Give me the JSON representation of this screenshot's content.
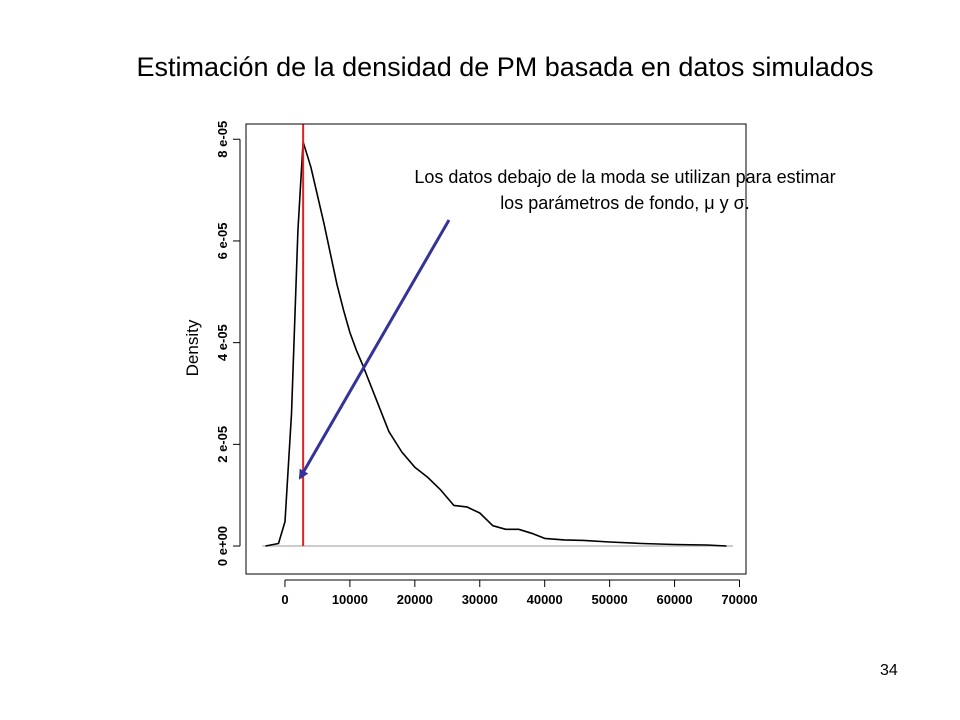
{
  "slide": {
    "title": "Estimación de la densidad de PM basada en datos simulados",
    "page_number": "34"
  },
  "annotation": {
    "line1": "Los datos debajo de la moda se utilizan para estimar",
    "line2": "los parámetros de fondo, μ y σ.",
    "arrow_color": "#333399"
  },
  "colors": {
    "density_line": "#000000",
    "mode_line": "#dd2222",
    "baseline": "#bbbbbb",
    "arrow": "#333399"
  },
  "chart_data": {
    "type": "line",
    "xlabel": "",
    "ylabel": "Density",
    "xlim": [
      -6000,
      71000
    ],
    "ylim": [
      -5.5e-06,
      8.3e-05
    ],
    "x_ticks": [
      0,
      10000,
      20000,
      30000,
      40000,
      50000,
      60000,
      70000
    ],
    "x_tick_labels": [
      "0",
      "10000",
      "20000",
      "30000",
      "40000",
      "50000",
      "60000",
      "70000"
    ],
    "y_ticks": [
      0,
      2e-05,
      4e-05,
      6e-05,
      8e-05
    ],
    "y_tick_labels": [
      "0 e+00",
      "2 e-05",
      "4 e-05",
      "6 e-05",
      "8 e-05"
    ],
    "mode_x": 2800,
    "series": [
      {
        "x": [
          -3000,
          -1000,
          0,
          1000,
          2000,
          2800,
          4000,
          5000,
          6000,
          7000,
          8000,
          9000,
          10000,
          11000,
          12000,
          14000,
          16000,
          18000,
          20000,
          22000,
          24000,
          26000,
          28000,
          30000,
          32000,
          34000,
          36000,
          38000,
          40000,
          43000,
          46000,
          50000,
          55000,
          60000,
          65000,
          68000
        ],
        "y": [
          0,
          5e-07,
          4.8e-06,
          2.6e-05,
          6.2e-05,
          7.95e-05,
          7.45e-05,
          6.9e-05,
          6.35e-05,
          5.75e-05,
          5.15e-05,
          4.65e-05,
          4.2e-05,
          3.85e-05,
          3.55e-05,
          2.9e-05,
          2.25e-05,
          1.85e-05,
          1.55e-05,
          1.35e-05,
          1.1e-05,
          8e-06,
          7.7e-06,
          6.5e-06,
          4e-06,
          3.3e-06,
          3.3e-06,
          2.5e-06,
          1.5e-06,
          1.2e-06,
          1.1e-06,
          8e-07,
          5e-07,
          3e-07,
          2e-07,
          0
        ]
      }
    ],
    "grid": false,
    "legend": "none"
  }
}
